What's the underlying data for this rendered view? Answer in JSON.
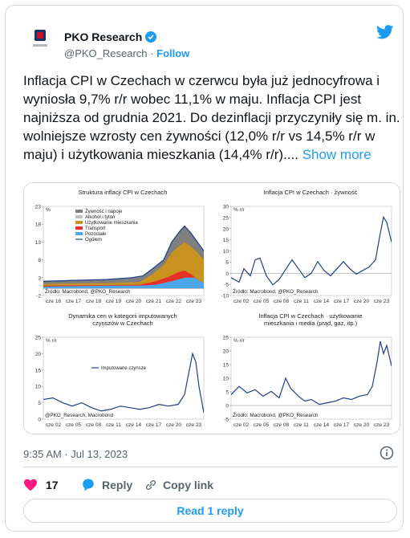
{
  "header": {
    "name": "PKO Research",
    "handle": "@PKO_Research",
    "separator": "·",
    "follow": "Follow"
  },
  "tweet": {
    "text": "Inflacja CPI w Czechach w czerwcu była już jednocyfrowa i wyniosła 9,7% r/r wobec 11,1% w maju. Inflacja CPI jest najniższa od grudnia 2021. Do dezinflacji przyczyniły się m. in. wolniejsze wzrosty cen żywności (12,0% r/r vs 14,5% r/r w maju) i użytkowania mieszkania (14,4% r/r)....",
    "show_more": "Show more"
  },
  "image": {
    "charts": [
      {
        "title": [
          "Struktura inflacji CPI w Czechach"
        ],
        "unit": "%",
        "yticks": [
          23,
          18,
          13,
          8,
          3,
          -2
        ],
        "xticks": [
          "cze 16",
          "cze 17",
          "cze 18",
          "cze 19",
          "cze 20",
          "cze 21",
          "cze 22",
          "cze 23"
        ],
        "legend": [
          "Żywność i napoje",
          "Alkohol i tytoń",
          "Użytkowanie mieszkania",
          "Transport",
          "Pozostałe",
          "Ogółem"
        ],
        "source": "Źródło: Macrobond, @PKO_Research"
      },
      {
        "title": [
          "Inflacja  CPI w Czechach · żywność"
        ],
        "unit": "% r/r",
        "yticks": [
          30,
          25,
          20,
          15,
          10,
          5,
          0,
          -5,
          -10
        ],
        "xticks": [
          "cze 02",
          "cze 05",
          "cze 08",
          "cze 11",
          "cze 14",
          "cze 17",
          "cze 20",
          "cze 23"
        ],
        "legend": [],
        "source": "Źródło: Macrobond, @PKO_Research"
      },
      {
        "title": [
          "Dynamika cen w kategorii imputowanych",
          "czynszów w Czechach"
        ],
        "unit": "% r/r",
        "yticks": [
          25,
          20,
          15,
          10,
          5,
          0
        ],
        "xticks": [
          "cze 02",
          "cze 05",
          "cze 08",
          "cze 11",
          "cze 14",
          "cze 17",
          "cze 20",
          "cze 23"
        ],
        "legend": [
          "Imputowane czynsze"
        ],
        "source": "@PKO_Research, Macrobond"
      },
      {
        "title": [
          "Inflacja  CPI w Czechach · użytkowanie",
          "mieszkania i media (prąd, gaz, itp.)"
        ],
        "unit": "% r/r",
        "yticks": [
          25,
          20,
          15,
          10,
          5,
          0,
          -5
        ],
        "xticks": [
          "cze 02",
          "cze 05",
          "cze 08",
          "cze 11",
          "cze 14",
          "cze 17",
          "cze 20",
          "cze 23"
        ],
        "legend": [],
        "source": "Źródło: Macrobond, @PKO_Research"
      }
    ]
  },
  "footer": {
    "timestamp": "9:35 AM · Jul 13, 2023",
    "likes": "17",
    "reply": "Reply",
    "copy_link": "Copy link",
    "read_replies": "Read 1 reply"
  }
}
